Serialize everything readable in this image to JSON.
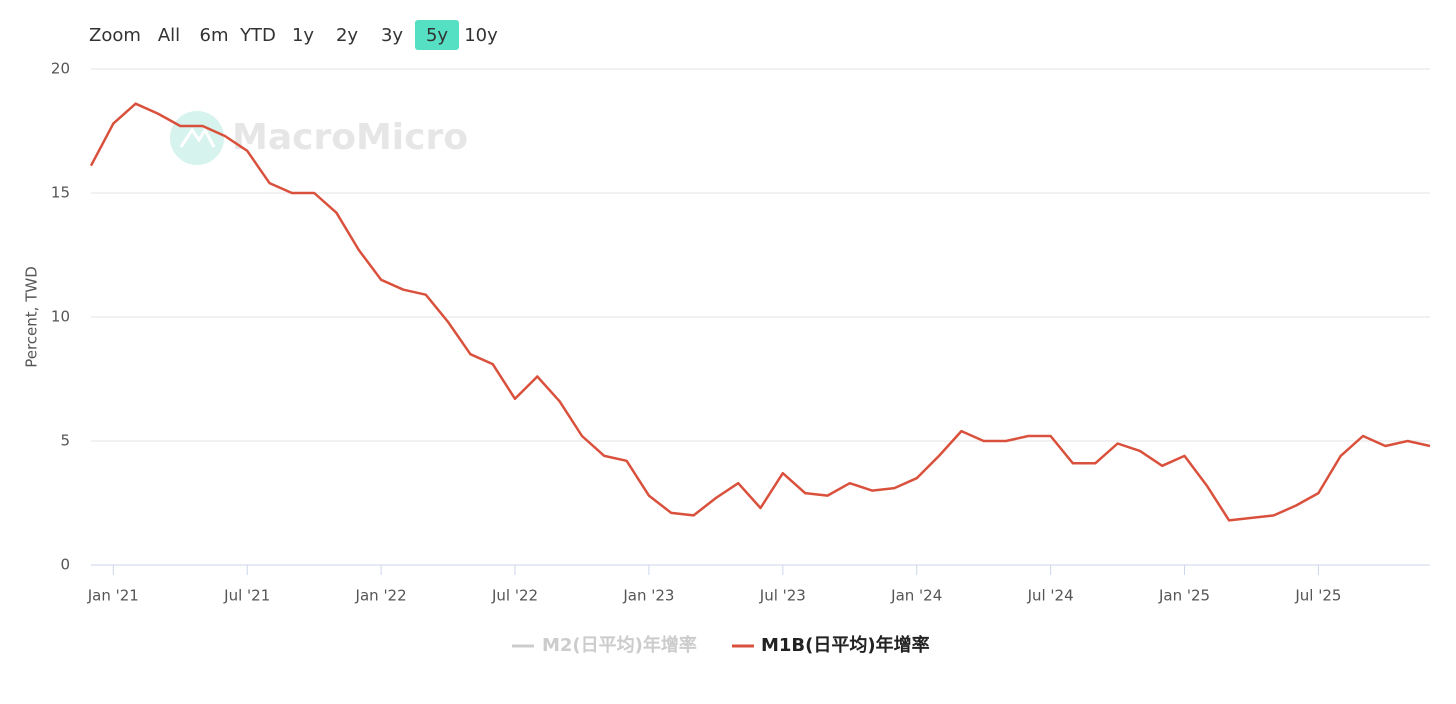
{
  "chart_data": {
    "type": "line",
    "range_selector": {
      "label": "Zoom",
      "buttons": [
        "All",
        "6m",
        "YTD",
        "1y",
        "2y",
        "3y",
        "5y",
        "10y"
      ],
      "selected": 6
    },
    "watermark": "MacroMicro",
    "y_label": "Percent, TWD",
    "x": [
      "2020-12",
      "2021-01",
      "2021-02",
      "2021-03",
      "2021-04",
      "2021-05",
      "2021-06",
      "2021-07",
      "2021-08",
      "2021-09",
      "2021-10",
      "2021-11",
      "2021-12",
      "2022-01",
      "2022-02",
      "2022-03",
      "2022-04",
      "2022-05",
      "2022-06",
      "2022-07",
      "2022-08",
      "2022-09",
      "2022-10",
      "2022-11",
      "2022-12",
      "2023-01",
      "2023-02",
      "2023-03",
      "2023-04",
      "2023-05",
      "2023-06",
      "2023-07",
      "2023-08",
      "2023-09",
      "2023-10",
      "2023-11",
      "2023-12",
      "2024-01",
      "2024-02",
      "2024-03",
      "2024-04",
      "2024-05",
      "2024-06",
      "2024-07",
      "2024-08",
      "2024-09",
      "2024-10",
      "2024-11",
      "2024-12",
      "2025-01",
      "2025-02",
      "2025-03",
      "2025-04",
      "2025-05",
      "2025-06",
      "2025-07",
      "2025-08",
      "2025-09",
      "2025-10",
      "2025-11",
      "2025-12"
    ],
    "series": [
      {
        "name": "M1B(日平均)年增率",
        "color": "#d9513c",
        "values": [
          16.1,
          17.8,
          18.6,
          18.2,
          17.7,
          17.7,
          17.3,
          16.7,
          15.4,
          15.0,
          15.0,
          14.2,
          12.7,
          11.5,
          11.1,
          10.9,
          9.8,
          8.5,
          8.1,
          6.7,
          7.6,
          6.6,
          5.2,
          4.4,
          4.2,
          2.8,
          2.1,
          2.0,
          2.7,
          3.3,
          2.3,
          3.7,
          2.9,
          2.8,
          3.3,
          3.0,
          3.1,
          3.5,
          4.4,
          5.4,
          5.0,
          5.0,
          5.2,
          5.2,
          4.1,
          4.1,
          4.9,
          4.6,
          4.0,
          4.4,
          3.2,
          1.8,
          1.9,
          2.0,
          2.4,
          2.9,
          4.4,
          5.2,
          4.8,
          5.0,
          4.8
        ]
      }
    ],
    "hidden_series": [
      {
        "name": "M2(日平均)年增率",
        "color": "#cccccc"
      }
    ],
    "ylim": [
      0,
      20
    ],
    "yticks": [
      0,
      5,
      10,
      15,
      20
    ],
    "xticks": [
      {
        "value": "2021-01",
        "label": "Jan '21"
      },
      {
        "value": "2021-07",
        "label": "Jul '21"
      },
      {
        "value": "2022-01",
        "label": "Jan '22"
      },
      {
        "value": "2022-07",
        "label": "Jul '22"
      },
      {
        "value": "2023-01",
        "label": "Jan '23"
      },
      {
        "value": "2023-07",
        "label": "Jul '23"
      },
      {
        "value": "2024-01",
        "label": "Jan '24"
      },
      {
        "value": "2024-07",
        "label": "Jul '24"
      },
      {
        "value": "2025-01",
        "label": "Jan '25"
      },
      {
        "value": "2025-07",
        "label": "Jul '25"
      }
    ],
    "grid": true
  }
}
